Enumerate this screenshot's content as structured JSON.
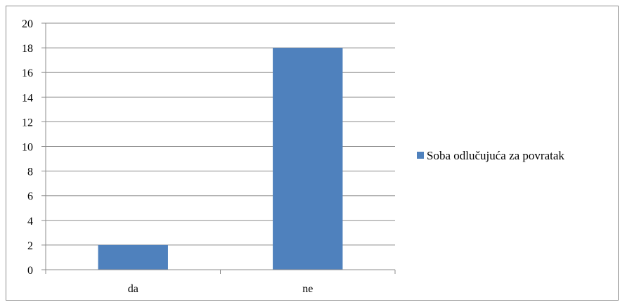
{
  "chart_data": {
    "type": "bar",
    "categories": [
      "da",
      "ne"
    ],
    "series": [
      {
        "name": "Soba odlučujuća za povratak",
        "values": [
          2,
          18
        ],
        "color": "#4f81bd"
      }
    ],
    "ylim": [
      0,
      20
    ],
    "yticks": [
      0,
      2,
      4,
      6,
      8,
      10,
      12,
      14,
      16,
      18,
      20
    ],
    "grid": true,
    "legend_position": "right"
  }
}
